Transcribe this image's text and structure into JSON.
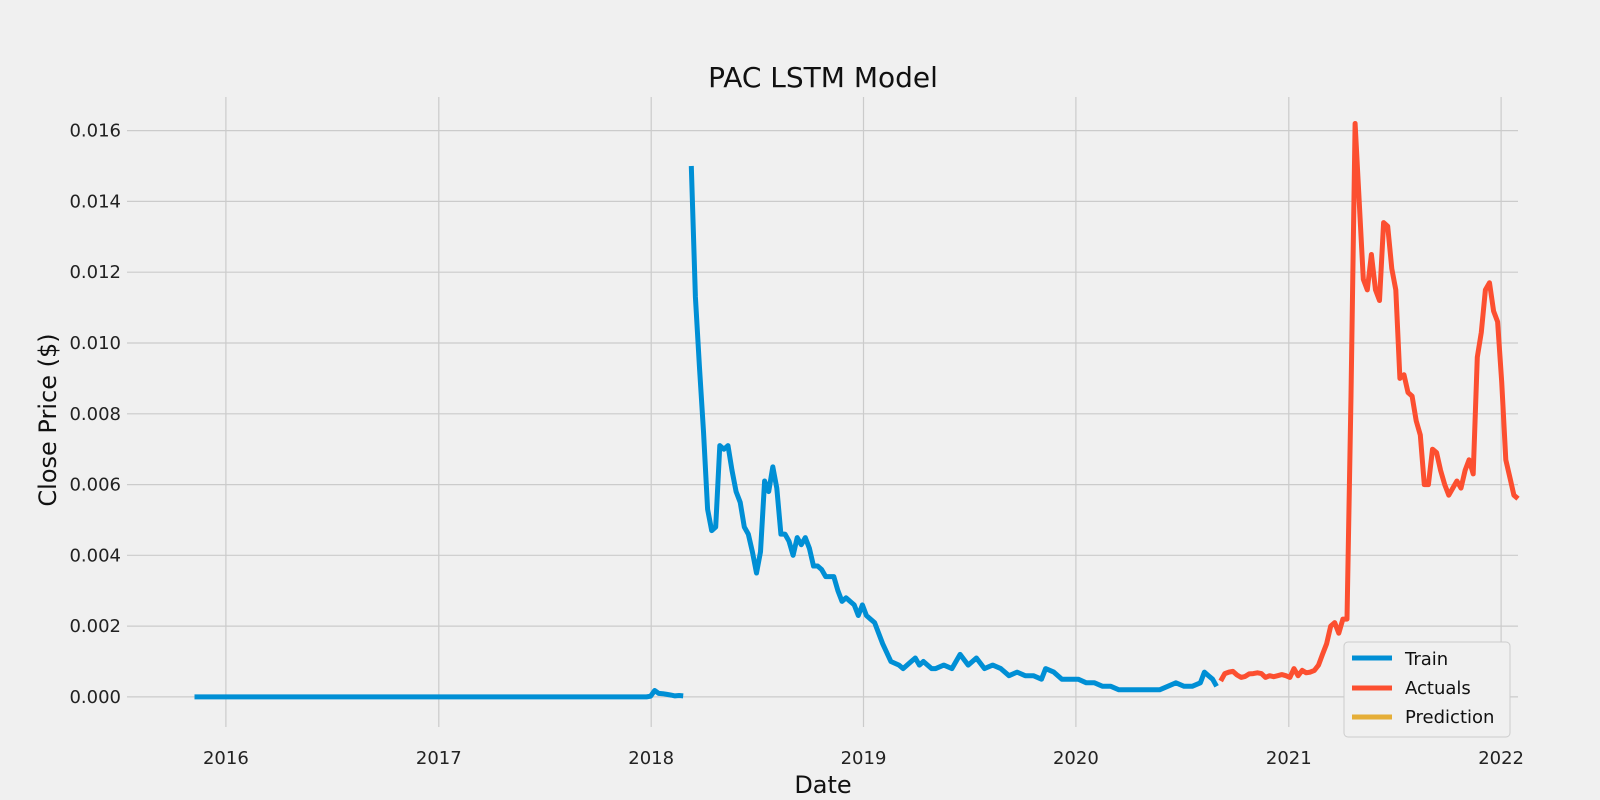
{
  "chart_data": {
    "type": "line",
    "title": "PAC LSTM Model",
    "xlabel": "Date",
    "ylabel": "Close Price ($)",
    "xlim": [
      "2015-07-15",
      "2022-01-30"
    ],
    "ylim": [
      -0.00085,
      0.01695
    ],
    "grid": true,
    "legend_position": "bottom-right",
    "x_ticks": [
      "2016",
      "2017",
      "2018",
      "2019",
      "2020",
      "2021",
      "2022"
    ],
    "x_tick_dates": [
      "2016-01-01",
      "2017-01-01",
      "2018-01-01",
      "2019-01-01",
      "2020-01-01",
      "2021-01-01",
      "2022-01-01"
    ],
    "y_ticks": [
      "0.000",
      "0.002",
      "0.004",
      "0.006",
      "0.008",
      "0.010",
      "0.012",
      "0.014",
      "0.016"
    ],
    "y_tick_values": [
      0,
      0.002,
      0.004,
      0.006,
      0.008,
      0.01,
      0.012,
      0.014,
      0.016
    ],
    "series": [
      {
        "name": "Train",
        "color": "#008fd5",
        "points": [
          [
            "2015-11-08",
            0.0
          ],
          [
            "2016-06-01",
            0.0
          ],
          [
            "2017-01-01",
            0.0
          ],
          [
            "2017-08-01",
            0.0
          ],
          [
            "2017-12-24",
            0.0
          ],
          [
            "2017-12-31",
            2e-05
          ],
          [
            "2018-01-07",
            0.00018
          ],
          [
            "2018-01-14",
            0.0001
          ],
          [
            "2018-01-21",
            9e-05
          ],
          [
            "2018-01-28",
            7e-05
          ],
          [
            "2018-02-04",
            5e-05
          ],
          [
            "2018-02-11",
            3e-05
          ],
          [
            "2018-02-18",
            4e-05
          ],
          [
            "2018-02-25",
            3e-05
          ],
          [
            "2018-03-04",
            null
          ],
          [
            "2018-03-11",
            0.015
          ],
          [
            "2018-03-18",
            0.0113
          ],
          [
            "2018-03-25",
            0.0093
          ],
          [
            "2018-04-01",
            0.0075
          ],
          [
            "2018-04-08",
            0.0053
          ],
          [
            "2018-04-15",
            0.0047
          ],
          [
            "2018-04-22",
            0.0048
          ],
          [
            "2018-04-29",
            0.0071
          ],
          [
            "2018-05-06",
            0.007
          ],
          [
            "2018-05-13",
            0.0071
          ],
          [
            "2018-05-20",
            0.0064
          ],
          [
            "2018-05-27",
            0.0058
          ],
          [
            "2018-06-03",
            0.0055
          ],
          [
            "2018-06-10",
            0.0048
          ],
          [
            "2018-06-17",
            0.0046
          ],
          [
            "2018-06-24",
            0.0041
          ],
          [
            "2018-07-01",
            0.0035
          ],
          [
            "2018-07-08",
            0.0041
          ],
          [
            "2018-07-15",
            0.0061
          ],
          [
            "2018-07-22",
            0.0058
          ],
          [
            "2018-07-29",
            0.0065
          ],
          [
            "2018-08-05",
            0.0059
          ],
          [
            "2018-08-12",
            0.0046
          ],
          [
            "2018-08-19",
            0.0046
          ],
          [
            "2018-08-26",
            0.0044
          ],
          [
            "2018-09-02",
            0.004
          ],
          [
            "2018-09-09",
            0.0045
          ],
          [
            "2018-09-16",
            0.0043
          ],
          [
            "2018-09-23",
            0.0045
          ],
          [
            "2018-09-30",
            0.0042
          ],
          [
            "2018-10-07",
            0.0037
          ],
          [
            "2018-10-14",
            0.0037
          ],
          [
            "2018-10-21",
            0.0036
          ],
          [
            "2018-10-28",
            0.0034
          ],
          [
            "2018-11-04",
            0.0034
          ],
          [
            "2018-11-11",
            0.0034
          ],
          [
            "2018-11-18",
            0.003
          ],
          [
            "2018-11-25",
            0.0027
          ],
          [
            "2018-12-02",
            0.0028
          ],
          [
            "2018-12-09",
            0.0027
          ],
          [
            "2018-12-16",
            0.0026
          ],
          [
            "2018-12-23",
            0.0023
          ],
          [
            "2018-12-30",
            0.0026
          ],
          [
            "2019-01-06",
            0.0023
          ],
          [
            "2019-01-13",
            0.0022
          ],
          [
            "2019-01-20",
            0.0021
          ],
          [
            "2019-02-03",
            0.0015
          ],
          [
            "2019-02-17",
            0.001
          ],
          [
            "2019-03-03",
            0.0009
          ],
          [
            "2019-03-10",
            0.0008
          ],
          [
            "2019-03-24",
            0.001
          ],
          [
            "2019-03-31",
            0.0011
          ],
          [
            "2019-04-07",
            0.0009
          ],
          [
            "2019-04-14",
            0.001
          ],
          [
            "2019-04-28",
            0.0008
          ],
          [
            "2019-05-05",
            0.0008
          ],
          [
            "2019-05-19",
            0.0009
          ],
          [
            "2019-06-02",
            0.0008
          ],
          [
            "2019-06-16",
            0.0012
          ],
          [
            "2019-06-30",
            0.0009
          ],
          [
            "2019-07-14",
            0.0011
          ],
          [
            "2019-07-28",
            0.0008
          ],
          [
            "2019-08-11",
            0.0009
          ],
          [
            "2019-08-25",
            0.0008
          ],
          [
            "2019-09-08",
            0.0006
          ],
          [
            "2019-09-22",
            0.0007
          ],
          [
            "2019-10-06",
            0.0006
          ],
          [
            "2019-10-20",
            0.0006
          ],
          [
            "2019-11-03",
            0.0005
          ],
          [
            "2019-11-10",
            0.0008
          ],
          [
            "2019-11-24",
            0.0007
          ],
          [
            "2019-12-08",
            0.0005
          ],
          [
            "2019-12-22",
            0.0005
          ],
          [
            "2020-01-05",
            0.0005
          ],
          [
            "2020-01-19",
            0.0004
          ],
          [
            "2020-02-02",
            0.0004
          ],
          [
            "2020-02-16",
            0.0003
          ],
          [
            "2020-03-01",
            0.0003
          ],
          [
            "2020-03-15",
            0.0002
          ],
          [
            "2020-03-29",
            0.0002
          ],
          [
            "2020-04-12",
            0.0002
          ],
          [
            "2020-04-26",
            0.0002
          ],
          [
            "2020-05-10",
            0.0002
          ],
          [
            "2020-05-24",
            0.0002
          ],
          [
            "2020-06-07",
            0.0003
          ],
          [
            "2020-06-21",
            0.0004
          ],
          [
            "2020-07-05",
            0.0003
          ],
          [
            "2020-07-19",
            0.0003
          ],
          [
            "2020-08-02",
            0.0004
          ],
          [
            "2020-08-09",
            0.0007
          ],
          [
            "2020-08-16",
            0.0006
          ],
          [
            "2020-08-23",
            0.0005
          ],
          [
            "2020-08-30",
            0.0003
          ]
        ]
      },
      {
        "name": "Actuals",
        "color": "#fc4f30",
        "points": [
          [
            "2020-09-06",
            0.00045
          ],
          [
            "2020-09-13",
            0.00066
          ],
          [
            "2020-09-20",
            0.0007
          ],
          [
            "2020-09-27",
            0.00072
          ],
          [
            "2020-10-04",
            0.00062
          ],
          [
            "2020-10-11",
            0.00055
          ],
          [
            "2020-10-18",
            0.00058
          ],
          [
            "2020-10-25",
            0.00065
          ],
          [
            "2020-11-01",
            0.00066
          ],
          [
            "2020-11-08",
            0.00068
          ],
          [
            "2020-11-15",
            0.00066
          ],
          [
            "2020-11-22",
            0.00055
          ],
          [
            "2020-11-29",
            0.0006
          ],
          [
            "2020-12-06",
            0.00057
          ],
          [
            "2020-12-13",
            0.0006
          ],
          [
            "2020-12-20",
            0.00063
          ],
          [
            "2020-12-27",
            0.0006
          ],
          [
            "2021-01-03",
            0.00055
          ],
          [
            "2021-01-10",
            0.0008
          ],
          [
            "2021-01-17",
            0.0006
          ],
          [
            "2021-01-24",
            0.00075
          ],
          [
            "2021-01-31",
            0.00068
          ],
          [
            "2021-02-07",
            0.0007
          ],
          [
            "2021-02-14",
            0.00075
          ],
          [
            "2021-02-21",
            0.0009
          ],
          [
            "2021-02-28",
            0.0012
          ],
          [
            "2021-03-07",
            0.0015
          ],
          [
            "2021-03-14",
            0.002
          ],
          [
            "2021-03-21",
            0.0021
          ],
          [
            "2021-03-28",
            0.0018
          ],
          [
            "2021-04-04",
            0.0022
          ],
          [
            "2021-04-11",
            0.0022
          ],
          [
            "2021-04-18",
            0.0085
          ],
          [
            "2021-04-25",
            0.0162
          ],
          [
            "2021-05-02",
            0.014
          ],
          [
            "2021-05-09",
            0.0118
          ],
          [
            "2021-05-16",
            0.0115
          ],
          [
            "2021-05-23",
            0.0125
          ],
          [
            "2021-05-30",
            0.0115
          ],
          [
            "2021-06-06",
            0.0112
          ],
          [
            "2021-06-13",
            0.0134
          ],
          [
            "2021-06-20",
            0.0133
          ],
          [
            "2021-06-27",
            0.0121
          ],
          [
            "2021-07-04",
            0.0115
          ],
          [
            "2021-07-11",
            0.009
          ],
          [
            "2021-07-18",
            0.0091
          ],
          [
            "2021-07-25",
            0.0086
          ],
          [
            "2021-08-01",
            0.0085
          ],
          [
            "2021-08-08",
            0.0078
          ],
          [
            "2021-08-15",
            0.0074
          ],
          [
            "2021-08-22",
            0.006
          ],
          [
            "2021-08-29",
            0.006
          ],
          [
            "2021-09-05",
            0.007
          ],
          [
            "2021-09-12",
            0.0069
          ],
          [
            "2021-09-19",
            0.0064
          ],
          [
            "2021-09-26",
            0.006
          ],
          [
            "2021-10-03",
            0.0057
          ],
          [
            "2021-10-10",
            0.0059
          ],
          [
            "2021-10-17",
            0.0061
          ],
          [
            "2021-10-24",
            0.0059
          ],
          [
            "2021-10-31",
            0.0064
          ],
          [
            "2021-11-07",
            0.0067
          ],
          [
            "2021-11-14",
            0.0063
          ],
          [
            "2021-11-21",
            0.0096
          ],
          [
            "2021-11-28",
            0.0103
          ],
          [
            "2021-12-05",
            0.0115
          ],
          [
            "2021-12-12",
            0.0117
          ],
          [
            "2021-12-19",
            0.0109
          ],
          [
            "2021-12-26",
            0.0106
          ],
          [
            "2022-01-02",
            0.0089
          ],
          [
            "2022-01-09",
            0.0067
          ],
          [
            "2022-01-16",
            0.0062
          ],
          [
            "2022-01-23",
            0.0057
          ],
          [
            "2022-01-30",
            0.0056
          ]
        ]
      },
      {
        "name": "Prediction",
        "color": "#e5ae38",
        "points": []
      }
    ]
  }
}
